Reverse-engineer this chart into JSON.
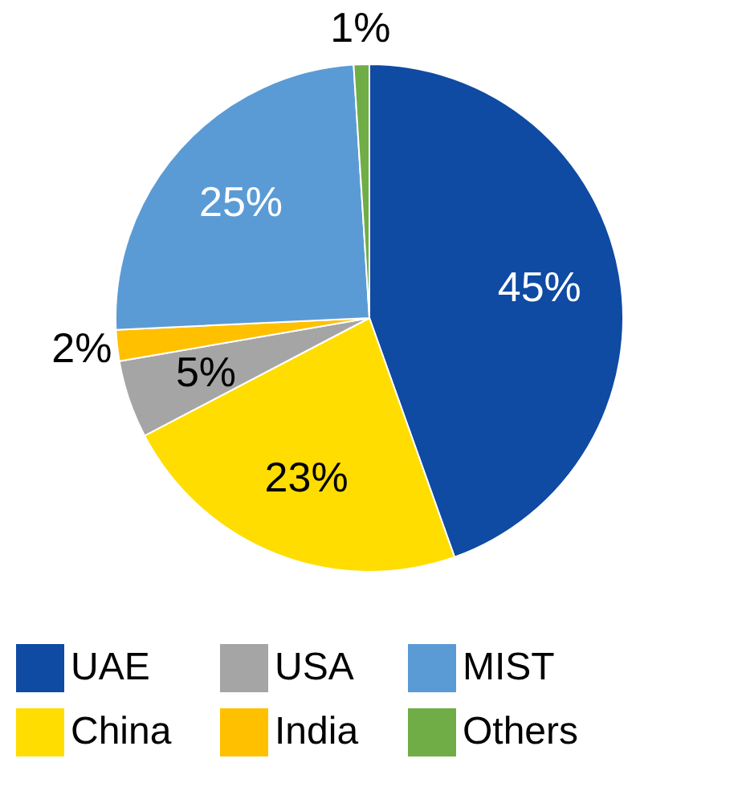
{
  "chart_data": {
    "type": "pie",
    "categories": [
      "UAE",
      "China",
      "USA",
      "India",
      "MIST",
      "Others"
    ],
    "values": [
      45,
      23,
      5,
      2,
      25,
      1
    ],
    "colors": [
      "#0f4aa3",
      "#ffdd00",
      "#a5a5a5",
      "#ffc000",
      "#5b9bd5",
      "#70ad47"
    ],
    "value_labels": [
      "45%",
      "23%",
      "5%",
      "2%",
      "25%",
      "1%"
    ],
    "legend": "bottom"
  }
}
